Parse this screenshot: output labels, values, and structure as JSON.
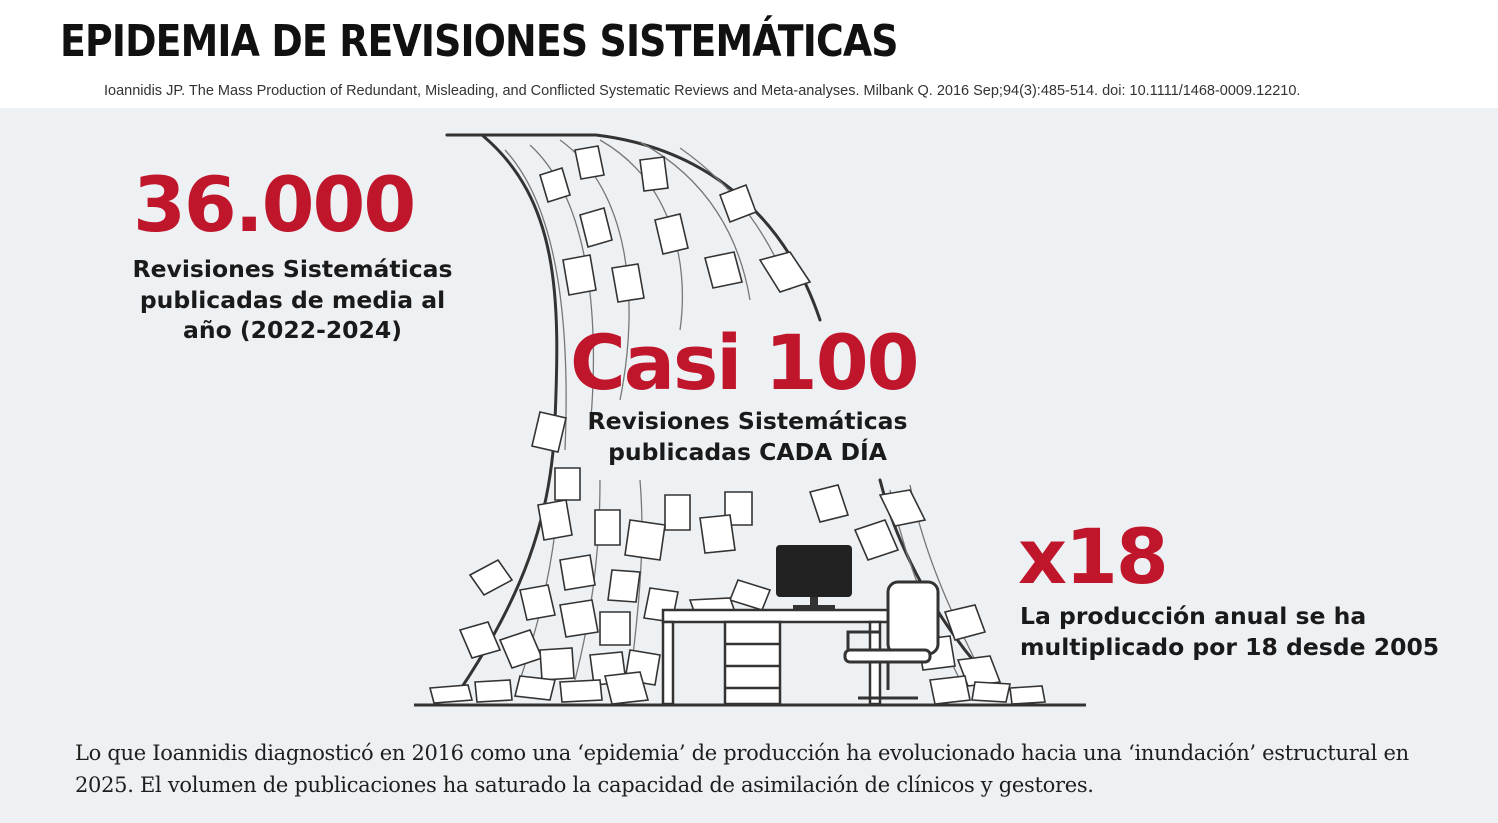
{
  "header": {
    "title": "EPIDEMIA DE REVISIONES SISTEMÁTICAS",
    "citation": "Ioannidis JP. The Mass Production of Redundant, Misleading, and Conflicted Systematic Reviews and Meta-analyses. Milbank Q. 2016 Sep;94(3):485-514. doi: 10.1111/1468-0009.12210."
  },
  "stats": [
    {
      "number": "36.000",
      "caption": "Revisiones Sistemáticas publicadas de media al año (2022-2024)"
    },
    {
      "number": "Casi 100",
      "caption": "Revisiones Sistemáticas publicadas CADA DÍA"
    },
    {
      "number": "x18",
      "caption": "La producción anual se ha multiplicado por 18 desde 2005"
    }
  ],
  "footer": {
    "text": "Lo que Ioannidis diagnosticó en 2016 como una ‘epidemia’ de producción ha evolucionado hacia una ‘inundación’ estructural en 2025. El volumen de publicaciones ha saturado la capacidad de asimilación de clínicos y gestores."
  },
  "colors": {
    "accent": "#c0162c",
    "panel_bg": "#eef1f3",
    "ink": "#1a1a1a"
  }
}
